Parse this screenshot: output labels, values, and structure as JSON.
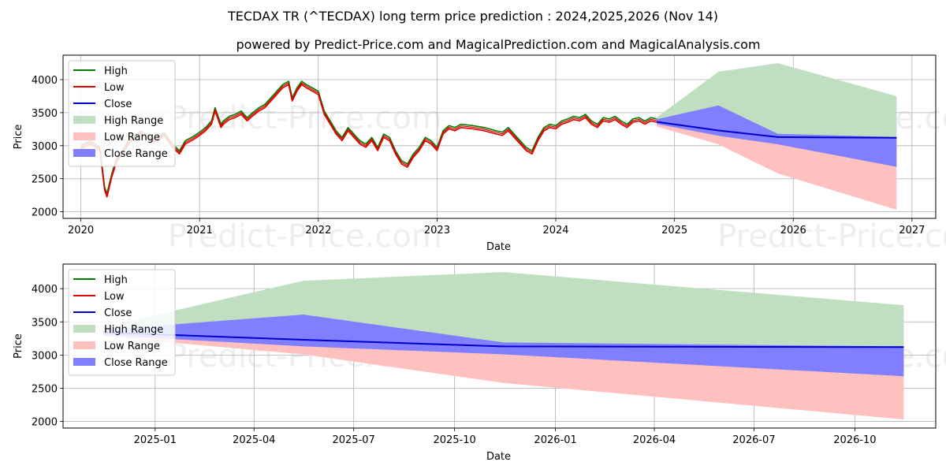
{
  "title": "TECDAX TR (^TECDAX) long term price prediction : 2024,2025,2026 (Nov 14)",
  "subtitle": "powered by Predict-Price.com and MagicalPrediction.com and MagicalAnalysis.com",
  "watermark": "Predict-Price.com",
  "colors": {
    "high": "#008000",
    "low": "#e00000",
    "close": "#0000cc",
    "high_range": "#c0dfc0",
    "low_range": "#ffc0c0",
    "close_range": "#7f7fff",
    "grid": "#b0b0b0"
  },
  "legend": [
    "High",
    "Low",
    "Close",
    "High Range",
    "Low Range",
    "Close Range"
  ],
  "chart_data": [
    {
      "type": "line",
      "xlabel": "Date",
      "ylabel": "Price",
      "xlim": [
        2019.85,
        2027.2
      ],
      "ylim": [
        1900,
        4370
      ],
      "x_ticks": [
        2020,
        2021,
        2022,
        2023,
        2024,
        2025,
        2026,
        2027
      ],
      "x_tick_labels": [
        "2020",
        "2021",
        "2022",
        "2023",
        "2024",
        "2025",
        "2026",
        "2027"
      ],
      "y_ticks": [
        2000,
        2500,
        3000,
        3500,
        4000
      ],
      "y_tick_labels": [
        "2000",
        "2500",
        "3000",
        "3500",
        "4000"
      ],
      "legend_position": "top-left",
      "history": {
        "x": [
          2020.0,
          2020.08,
          2020.16,
          2020.2,
          2020.22,
          2020.26,
          2020.3,
          2020.35,
          2020.4,
          2020.45,
          2020.5,
          2020.55,
          2020.6,
          2020.65,
          2020.7,
          2020.75,
          2020.8,
          2020.83,
          2020.88,
          2020.95,
          2021.0,
          2021.05,
          2021.1,
          2021.13,
          2021.18,
          2021.2,
          2021.25,
          2021.3,
          2021.35,
          2021.4,
          2021.45,
          2021.5,
          2021.55,
          2021.6,
          2021.65,
          2021.7,
          2021.75,
          2021.78,
          2021.82,
          2021.86,
          2021.9,
          2021.95,
          2022.0,
          2022.05,
          2022.1,
          2022.15,
          2022.2,
          2022.25,
          2022.3,
          2022.35,
          2022.4,
          2022.45,
          2022.5,
          2022.55,
          2022.6,
          2022.65,
          2022.7,
          2022.75,
          2022.8,
          2022.85,
          2022.9,
          2022.95,
          2023.0,
          2023.05,
          2023.1,
          2023.15,
          2023.2,
          2023.3,
          2023.4,
          2023.5,
          2023.55,
          2023.6,
          2023.65,
          2023.7,
          2023.75,
          2023.8,
          2023.85,
          2023.9,
          2023.95,
          2024.0,
          2024.05,
          2024.1,
          2024.15,
          2024.2,
          2024.25,
          2024.3,
          2024.35,
          2024.4,
          2024.45,
          2024.5,
          2024.55,
          2024.6,
          2024.65,
          2024.7,
          2024.75,
          2024.8,
          2024.85
        ],
        "close": [
          2980,
          3050,
          2950,
          2350,
          2250,
          2550,
          2780,
          2900,
          3050,
          3120,
          3200,
          3150,
          3080,
          3100,
          3180,
          3050,
          2950,
          2900,
          3050,
          3120,
          3180,
          3250,
          3350,
          3550,
          3300,
          3350,
          3420,
          3450,
          3500,
          3400,
          3480,
          3550,
          3600,
          3700,
          3800,
          3900,
          3950,
          3700,
          3850,
          3950,
          3900,
          3850,
          3800,
          3500,
          3350,
          3200,
          3100,
          3250,
          3150,
          3050,
          3000,
          3100,
          2950,
          3150,
          3100,
          2900,
          2750,
          2700,
          2850,
          2950,
          3100,
          3050,
          2950,
          3200,
          3280,
          3250,
          3300,
          3280,
          3250,
          3200,
          3180,
          3250,
          3150,
          3050,
          2950,
          2900,
          3100,
          3250,
          3300,
          3280,
          3350,
          3380,
          3420,
          3400,
          3450,
          3350,
          3300,
          3400,
          3380,
          3420,
          3350,
          3300,
          3380,
          3400,
          3350,
          3400,
          3380
        ]
      },
      "forecast": {
        "x": [
          2024.85,
          2025.37,
          2025.87,
          2026.87
        ],
        "close": [
          3360,
          3230,
          3130,
          3120
        ],
        "high_range_upper": [
          3430,
          4120,
          4250,
          3750
        ],
        "low_range_lower": [
          3290,
          3020,
          2580,
          2030
        ],
        "close_range_upper": [
          3400,
          3610,
          3180,
          3130
        ],
        "close_range_lower": [
          3330,
          3150,
          3020,
          2680
        ]
      }
    },
    {
      "type": "line",
      "xlabel": "Date",
      "ylabel": "Price",
      "xlim": [
        2024.77,
        2026.95
      ],
      "ylim": [
        1900,
        4370
      ],
      "x_ticks": [
        2025.0,
        2025.247,
        2025.496,
        2025.748,
        2026.0,
        2026.247,
        2026.496,
        2026.748
      ],
      "x_tick_labels": [
        "2025-01",
        "2025-04",
        "2025-07",
        "2025-10",
        "2026-01",
        "2026-04",
        "2026-07",
        "2026-10"
      ],
      "y_ticks": [
        2000,
        2500,
        3000,
        3500,
        4000
      ],
      "y_tick_labels": [
        "2000",
        "2500",
        "3000",
        "3500",
        "4000"
      ],
      "legend_position": "top-left",
      "forecast": {
        "x": [
          2024.87,
          2025.37,
          2025.87,
          2026.87
        ],
        "close": [
          3340,
          3230,
          3130,
          3120
        ],
        "high_range_upper": [
          3420,
          4120,
          4250,
          3750
        ],
        "low_range_lower": [
          3280,
          3010,
          2580,
          2030
        ],
        "close_range_upper": [
          3380,
          3610,
          3190,
          3130
        ],
        "close_range_lower": [
          3300,
          3130,
          3010,
          2680
        ]
      }
    }
  ]
}
